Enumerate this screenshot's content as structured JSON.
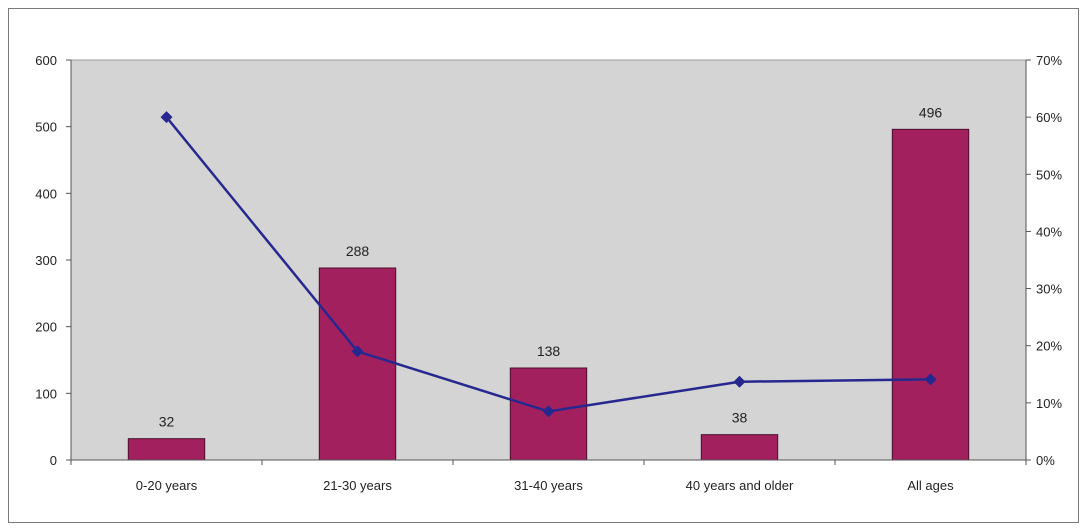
{
  "chart_data": {
    "type": "bar",
    "categories": [
      "0-20 years",
      "21-30 years",
      "31-40 years",
      "40 years and older",
      "All ages"
    ],
    "series": [
      {
        "type": "bar",
        "axis": "left",
        "values": [
          32,
          288,
          138,
          38,
          496
        ],
        "data_labels": [
          "32",
          "288",
          "138",
          "38",
          "496"
        ],
        "color": "#a3205f"
      },
      {
        "type": "line",
        "axis": "right",
        "values": [
          0.6,
          0.19,
          0.085,
          0.137,
          0.141
        ],
        "color": "#27288f"
      }
    ],
    "y_left": {
      "ylim": [
        0,
        600
      ],
      "ticks": [
        0,
        100,
        200,
        300,
        400,
        500,
        600
      ],
      "tick_labels": [
        "0",
        "100",
        "200",
        "300",
        "400",
        "500",
        "600"
      ]
    },
    "y_right": {
      "ylim": [
        0,
        0.7
      ],
      "ticks": [
        0,
        0.1,
        0.2,
        0.3,
        0.4,
        0.5,
        0.6,
        0.7
      ],
      "tick_labels": [
        "0%",
        "10%",
        "20%",
        "30%",
        "40%",
        "50%",
        "60%",
        "70%"
      ]
    },
    "title": "",
    "xlabel": "",
    "ylabel": "",
    "grid": false,
    "legend": "none",
    "plot_background": "#d4d4d4"
  }
}
